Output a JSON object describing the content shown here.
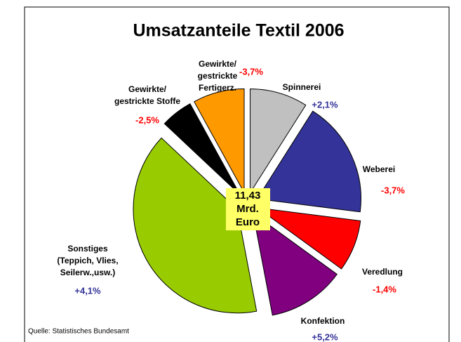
{
  "chart_data": {
    "type": "pie",
    "title": "Umsatzanteile Textil 2006",
    "center_label": "11,43\nMrd.\nEuro",
    "source": "Quelle: Statistisches Bundesamt",
    "categories": [
      "Spinnerei",
      "Weberei",
      "Veredlung",
      "Konfektion",
      "Sonstiges\n(Teppich, Vlies,\nSeilerw.,usw.)",
      "Gewirkte/\ngestrickte Stoffe",
      "Gewirkte/\ngestrickte\nFertigerz."
    ],
    "values": [
      9,
      18,
      8,
      12,
      40,
      5,
      8
    ],
    "changes": [
      "+2,1%",
      "-3,7%",
      "-1,4%",
      "+5,2%",
      "+4,1%",
      "-2,5%",
      "-3,7%"
    ],
    "colors": [
      "#c0c0c0",
      "#333399",
      "#ff0000",
      "#800080",
      "#99cc00",
      "#000000",
      "#ff9900"
    ]
  }
}
